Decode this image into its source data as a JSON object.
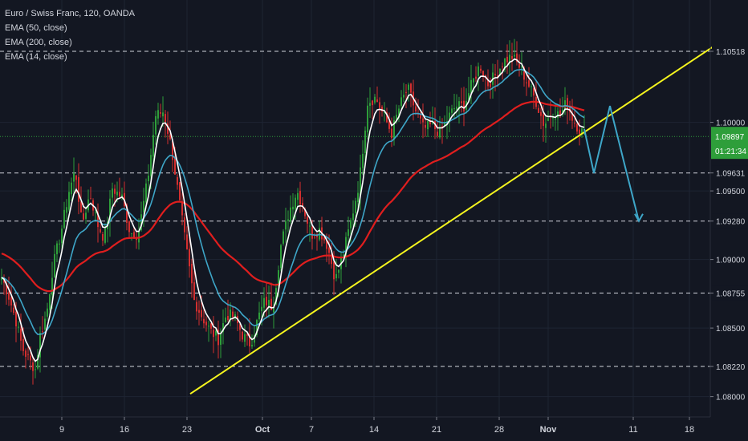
{
  "legend": {
    "title": "Euro / Swiss Franc, 120, OANDA",
    "indicators": [
      "EMA (50, close)",
      "EMA (200, close)",
      "EMA (14, close)"
    ]
  },
  "colors": {
    "background": "#131722",
    "up_candle": "#2e9e3a",
    "down_candle": "#d32f2f",
    "ema50": "#3ea6c8",
    "ema200": "#e01e1e",
    "ema14": "#ffffff",
    "trendline": "#f5f51e",
    "projection": "#3ea6c8",
    "price_line": "#2e9e3a",
    "dashed_levels": "#d1d4dc"
  },
  "chart_data": {
    "type": "candlestick",
    "symbol": "Euro / Swiss Franc",
    "timeframe": "120",
    "source": "OANDA",
    "y_axis": {
      "range": [
        1.0775,
        1.0605
      ],
      "tick_labels": [
        "1.08000",
        "1.08500",
        "1.09000",
        "1.09500",
        "1.10000"
      ]
    },
    "x_axis": {
      "tick_labels": [
        "9",
        "16",
        "23",
        "Oct",
        "7",
        "14",
        "21",
        "28",
        "Nov",
        "11",
        "18"
      ]
    },
    "horizontal_levels": [
      1.10518,
      1.09631,
      1.0928,
      1.08755,
      1.0822
    ],
    "level_labels": [
      "1.10518",
      "1.09631",
      "1.09280",
      "1.08755",
      "1.08220"
    ],
    "current_price": {
      "value": 1.09897,
      "label": "1.09897",
      "countdown": "01:21:34"
    },
    "price_path": [
      [
        0,
        1.089
      ],
      [
        10,
        1.0875
      ],
      [
        20,
        1.0855
      ],
      [
        28,
        1.0835
      ],
      [
        38,
        1.0825
      ],
      [
        44,
        1.082
      ],
      [
        50,
        1.0845
      ],
      [
        58,
        1.086
      ],
      [
        66,
        1.0895
      ],
      [
        76,
        1.092
      ],
      [
        86,
        1.095
      ],
      [
        94,
        1.0965
      ],
      [
        102,
        1.0925
      ],
      [
        112,
        1.0948
      ],
      [
        122,
        1.0925
      ],
      [
        130,
        1.0915
      ],
      [
        140,
        1.0952
      ],
      [
        152,
        1.0945
      ],
      [
        162,
        1.092
      ],
      [
        172,
        1.0918
      ],
      [
        184,
        1.0958
      ],
      [
        194,
        1.1005
      ],
      [
        204,
        1.1008
      ],
      [
        214,
        1.098
      ],
      [
        224,
        1.094
      ],
      [
        232,
        1.0908
      ],
      [
        242,
        1.087
      ],
      [
        252,
        1.0858
      ],
      [
        262,
        1.0848
      ],
      [
        272,
        1.0842
      ],
      [
        282,
        1.086
      ],
      [
        292,
        1.0858
      ],
      [
        302,
        1.0845
      ],
      [
        312,
        1.0838
      ],
      [
        322,
        1.0858
      ],
      [
        330,
        1.087
      ],
      [
        340,
        1.0865
      ],
      [
        350,
        1.091
      ],
      [
        360,
        1.0935
      ],
      [
        370,
        1.095
      ],
      [
        378,
        1.0938
      ],
      [
        388,
        1.0918
      ],
      [
        398,
        1.0922
      ],
      [
        408,
        1.091
      ],
      [
        418,
        1.0885
      ],
      [
        428,
        1.0905
      ],
      [
        438,
        1.093
      ],
      [
        448,
        1.0958
      ],
      [
        458,
        1.1015
      ],
      [
        468,
        1.1018
      ],
      [
        478,
        1.1005
      ],
      [
        488,
        1.0992
      ],
      [
        498,
        1.1012
      ],
      [
        508,
        1.1025
      ],
      [
        518,
        1.1008
      ],
      [
        528,
        1.0995
      ],
      [
        538,
        1.0998
      ],
      [
        548,
        1.0992
      ],
      [
        558,
        1.1003
      ],
      [
        568,
        1.1012
      ],
      [
        578,
        1.1012
      ],
      [
        588,
        1.1028
      ],
      [
        598,
        1.1042
      ],
      [
        608,
        1.1028
      ],
      [
        618,
        1.1035
      ],
      [
        628,
        1.1045
      ],
      [
        638,
        1.1048
      ],
      [
        648,
        1.104
      ],
      [
        658,
        1.1028
      ],
      [
        668,
        1.1015
      ],
      [
        678,
        1.0998
      ],
      [
        688,
        1.1008
      ],
      [
        698,
        1.1005
      ],
      [
        706,
        1.1015
      ],
      [
        714,
        1.1002
      ],
      [
        722,
        1.0995
      ],
      [
        728,
        1.0992
      ]
    ],
    "trendline": {
      "from": [
        237,
        1.0802
      ],
      "to": [
        888,
        1.1055
      ]
    },
    "projection_path": [
      [
        728,
        1.0995
      ],
      [
        740,
        1.0963
      ],
      [
        760,
        1.1012
      ],
      [
        780,
        1.0965
      ],
      [
        796,
        1.0928
      ]
    ]
  }
}
